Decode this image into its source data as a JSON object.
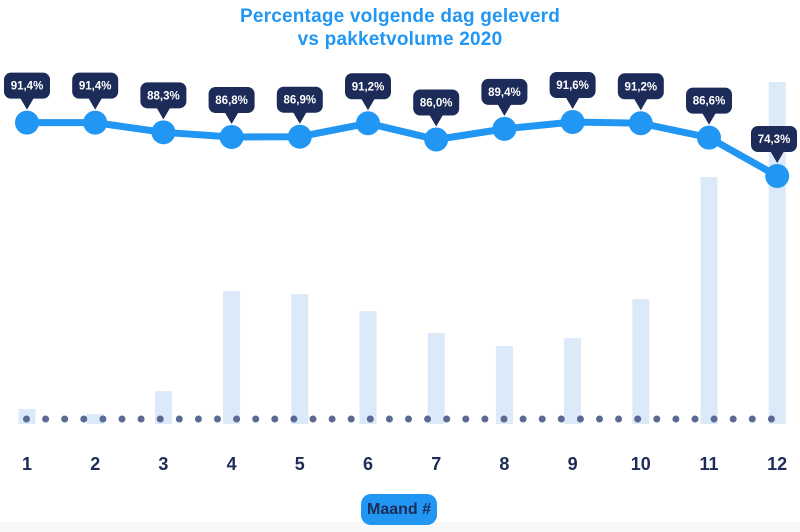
{
  "title": {
    "line1": "Percentage volgende dag geleverd",
    "line2": "vs pakketvolume 2020"
  },
  "x_axis": {
    "label": "Maand #",
    "categories": [
      "1",
      "2",
      "3",
      "4",
      "5",
      "6",
      "7",
      "8",
      "9",
      "10",
      "11",
      "12"
    ]
  },
  "chart_data": [
    {
      "type": "line",
      "name": "Percentage volgende dag geleverd",
      "x": [
        1,
        2,
        3,
        4,
        5,
        6,
        7,
        8,
        9,
        10,
        11,
        12
      ],
      "values": [
        91.4,
        91.4,
        88.3,
        86.8,
        86.9,
        91.2,
        86.0,
        89.4,
        91.6,
        91.2,
        86.6,
        74.3
      ],
      "point_labels": [
        "91,4%",
        "91,4%",
        "88,3%",
        "86,8%",
        "86,9%",
        "91,2%",
        "86,0%",
        "89,4%",
        "91,6%",
        "91,2%",
        "86,6%",
        "74,3%"
      ],
      "ylim": [
        70,
        95
      ],
      "legend_position": "none",
      "grid": false
    },
    {
      "type": "bar",
      "name": "Pakketvolume 2020",
      "x": [
        1,
        2,
        3,
        4,
        5,
        6,
        7,
        8,
        9,
        10,
        11,
        12
      ],
      "values": [
        4.4,
        2.9,
        9.6,
        38.9,
        38.0,
        33.0,
        26.6,
        22.8,
        25.1,
        36.5,
        72.2,
        100
      ],
      "ylim": [
        0,
        100
      ],
      "legend_position": "none",
      "grid": false
    }
  ],
  "colors": {
    "accent_blue": "#2196F3",
    "navy": "#1C2B57",
    "bar_fill": "#DBE9F8",
    "dot": "#5A6A93",
    "tooltip_text": "#FFFFFF",
    "page_strip": "#F7F7F8",
    "background": "#FFFFFF"
  }
}
